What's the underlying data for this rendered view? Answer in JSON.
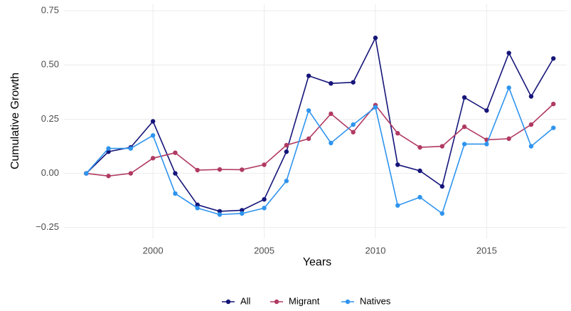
{
  "chart_data": {
    "type": "line",
    "x_label": "Years",
    "y_label": "Cumulative Growth",
    "x": [
      1997,
      1998,
      1999,
      2000,
      2001,
      2002,
      2003,
      2004,
      2005,
      2006,
      2007,
      2008,
      2009,
      2010,
      2011,
      2012,
      2013,
      2014,
      2015,
      2016,
      2017,
      2018
    ],
    "series": [
      {
        "name": "All",
        "color": "#15157a",
        "values": [
          0,
          0.1,
          0.12,
          0.24,
          0.0,
          -0.145,
          -0.175,
          -0.17,
          -0.12,
          0.1,
          0.45,
          0.415,
          0.42,
          0.625,
          0.04,
          0.012,
          -0.06,
          0.35,
          0.29,
          0.555,
          0.355,
          0.53
        ]
      },
      {
        "name": "Migrant",
        "color": "#b03a62",
        "values": [
          0,
          -0.012,
          0.0,
          0.07,
          0.095,
          0.015,
          0.018,
          0.017,
          0.04,
          0.13,
          0.16,
          0.275,
          0.19,
          0.315,
          0.185,
          0.12,
          0.125,
          0.215,
          0.155,
          0.16,
          0.225,
          0.32
        ]
      },
      {
        "name": "Natives",
        "color": "#2e94ee",
        "values": [
          0,
          0.115,
          0.115,
          0.175,
          -0.093,
          -0.16,
          -0.19,
          -0.185,
          -0.16,
          -0.035,
          0.29,
          0.14,
          0.225,
          0.305,
          -0.148,
          -0.11,
          -0.185,
          0.135,
          0.135,
          0.395,
          0.125,
          0.21
        ]
      }
    ],
    "xlim": [
      1996,
      2018.6
    ],
    "xticks": [
      2000,
      2005,
      2010,
      2015
    ],
    "ylim": [
      -0.3,
      0.78
    ],
    "yticks": [
      {
        "value": -0.25,
        "label": "−0.25"
      },
      {
        "value": 0,
        "label": "0.00"
      },
      {
        "value": 0.25,
        "label": "0.25"
      },
      {
        "value": 0.5,
        "label": "0.50"
      },
      {
        "value": 0.75,
        "label": "0.75"
      }
    ],
    "grid": true,
    "legend": "bottom"
  }
}
